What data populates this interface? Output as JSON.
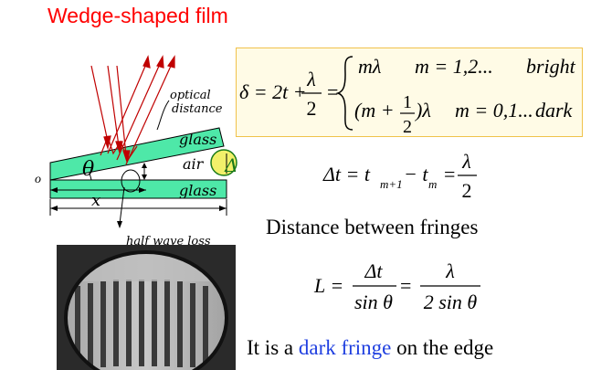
{
  "title": "Wedge-shaped film",
  "diagram": {
    "labels": {
      "optical": "optical",
      "distance": "distance",
      "glass_top": "glass",
      "air": "air",
      "glass_bottom": "glass",
      "o": "o",
      "theta": "θ",
      "x": "x",
      "delta_t": "Δt",
      "half_wave": "half wave loss"
    },
    "colors": {
      "glass": "#4ee8a8",
      "rays": "#c00000",
      "ink": "#000000",
      "annotation": "#1a7a1a"
    }
  },
  "formula_path_difference": {
    "lhs": "δ = 2t +",
    "frac_num": "λ",
    "frac_den": "2",
    "eq": "=",
    "case1_expr": "mλ",
    "case1_cond": "m = 1,2...",
    "case1_label": "bright",
    "case2_pre": "(m +",
    "case2_num": "1",
    "case2_den": "2",
    "case2_post": ")λ",
    "case2_cond": "m = 0,1...",
    "case2_label": "dark"
  },
  "formula_delta_t": {
    "lhs": "Δt = t",
    "sub1": "m+1",
    "mid": "− t",
    "sub2": "m",
    "eq": "=",
    "num": "λ",
    "den": "2"
  },
  "subtitle": "Distance between fringes",
  "formula_L": {
    "lhs": "L =",
    "num1": "Δt",
    "den1": "sin θ",
    "eq": "=",
    "num2": "λ",
    "den2": "2 sin θ"
  },
  "bottom": {
    "pre": "It is a ",
    "highlight": "dark fringe",
    "post": " on the edge"
  }
}
